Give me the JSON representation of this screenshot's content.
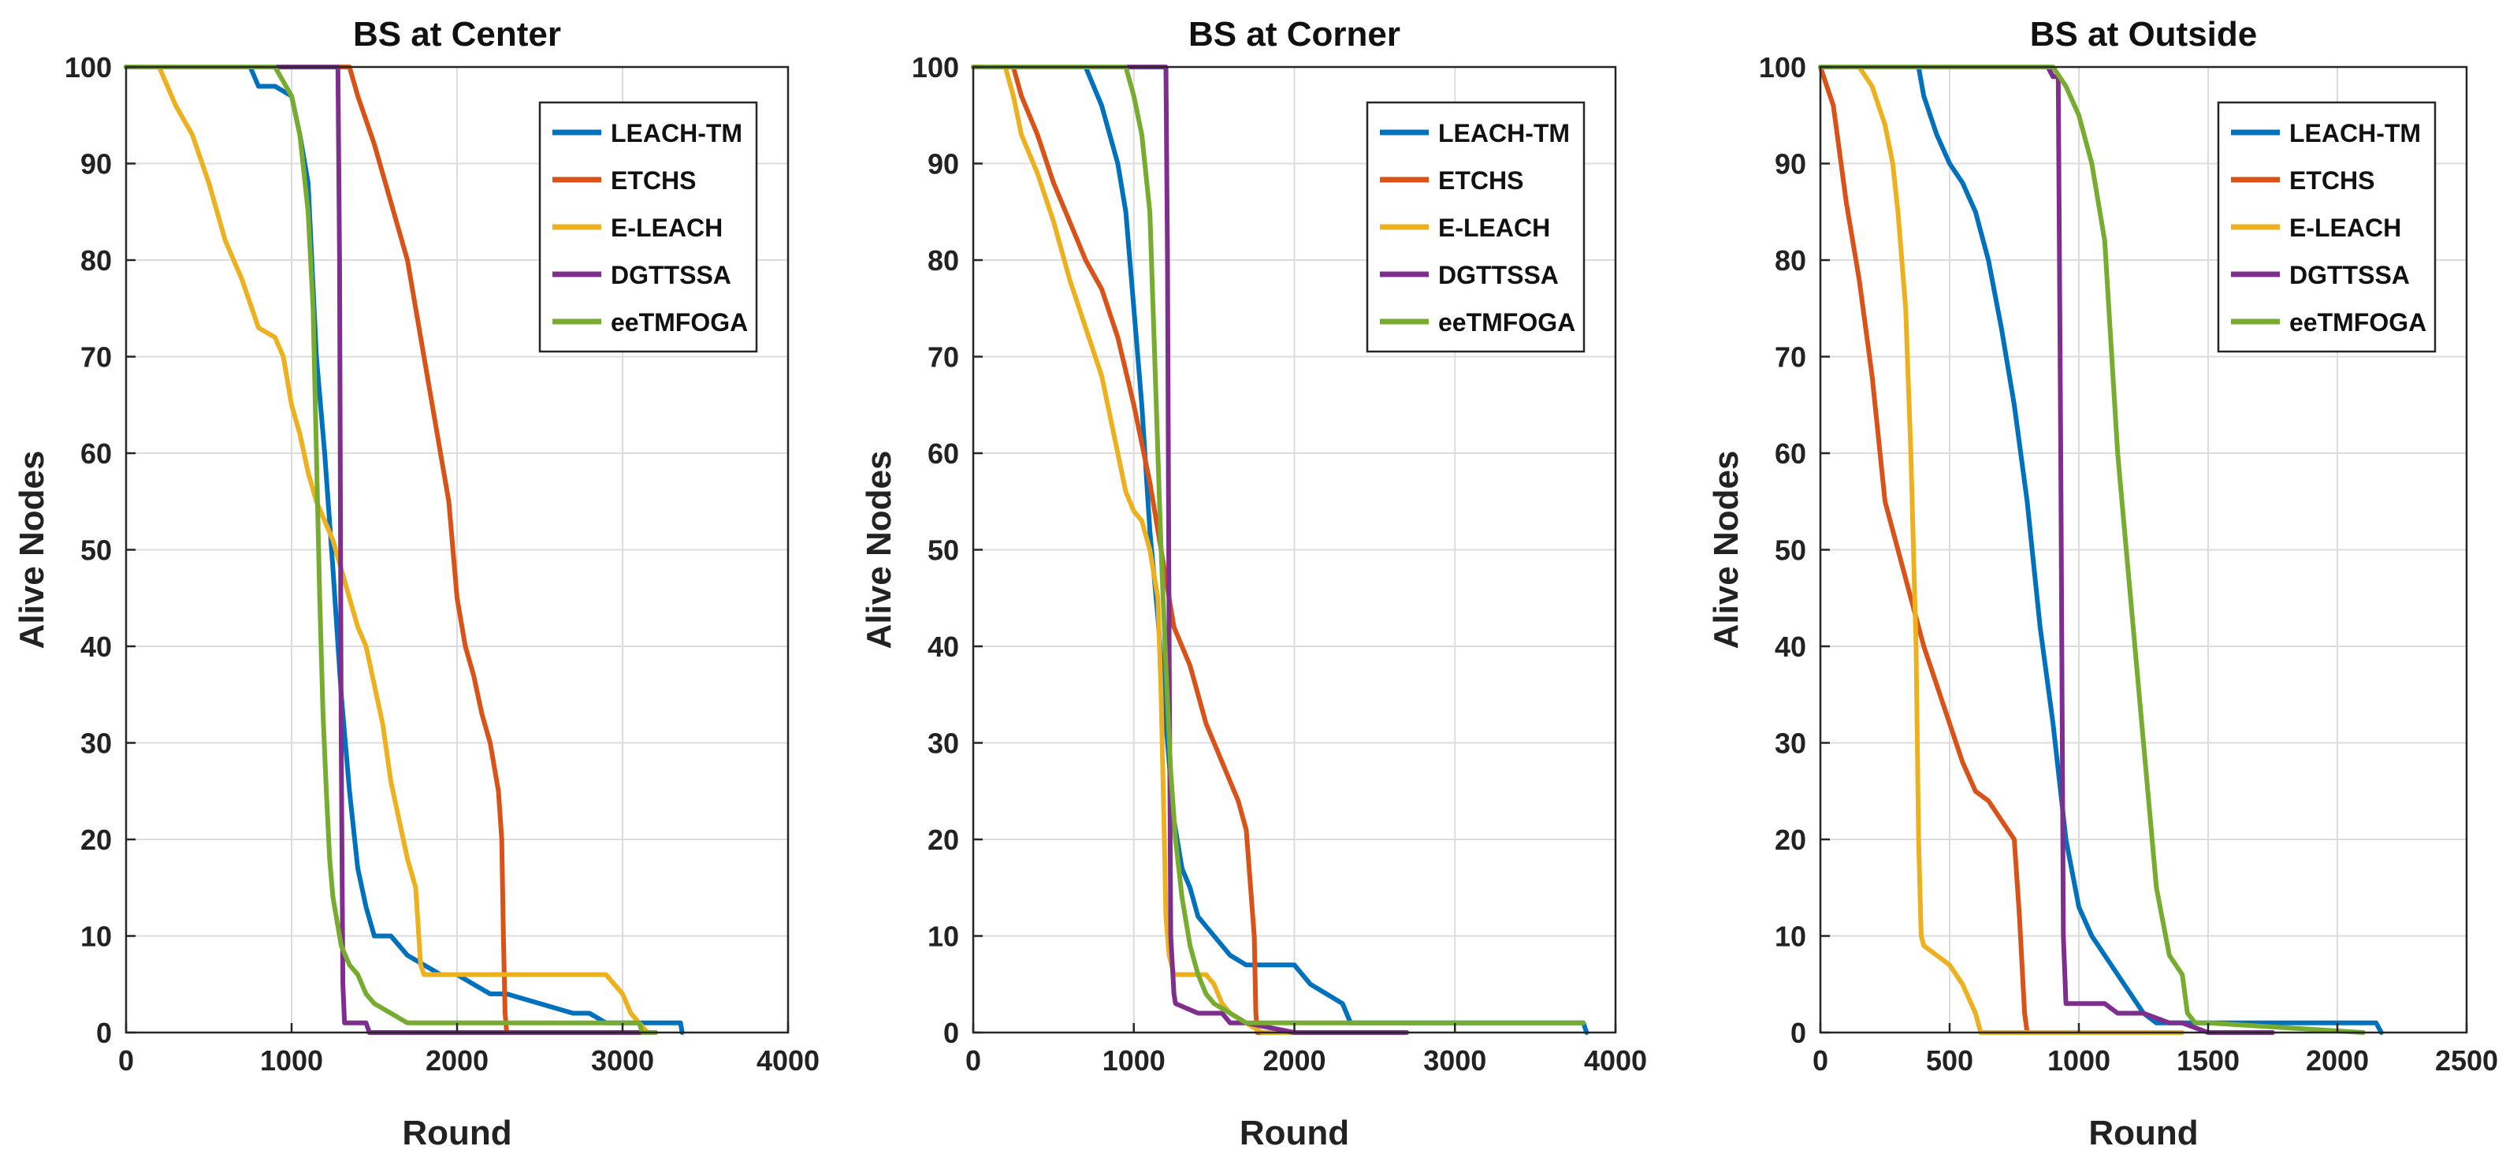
{
  "chart_data": [
    {
      "type": "line",
      "title": "BS at Center",
      "xlabel": "Round",
      "ylabel": "Alive Nodes",
      "xlim": [
        0,
        4000
      ],
      "ylim": [
        0,
        100
      ],
      "xticks": [
        0,
        1000,
        2000,
        3000,
        4000
      ],
      "yticks": [
        0,
        10,
        20,
        30,
        40,
        50,
        60,
        70,
        80,
        90,
        100
      ],
      "grid": true,
      "legend": "top-right",
      "series": [
        {
          "name": "LEACH-TM",
          "color": "#0072BD",
          "x": [
            0,
            750,
            800,
            900,
            1000,
            1050,
            1100,
            1150,
            1200,
            1250,
            1300,
            1350,
            1400,
            1450,
            1500,
            1600,
            1700,
            1800,
            1900,
            2000,
            2100,
            2200,
            2300,
            2500,
            2700,
            2800,
            2900,
            3300,
            3350,
            3360
          ],
          "y": [
            100,
            100,
            98,
            98,
            97,
            93,
            88,
            70,
            60,
            48,
            35,
            25,
            17,
            13,
            10,
            10,
            8,
            7,
            6,
            6,
            5,
            4,
            4,
            3,
            2,
            2,
            1,
            1,
            1,
            0
          ]
        },
        {
          "name": "ETCHS",
          "color": "#D95319",
          "x": [
            0,
            1350,
            1400,
            1500,
            1600,
            1700,
            1800,
            1850,
            1900,
            1950,
            2000,
            2050,
            2100,
            2150,
            2200,
            2250,
            2270,
            2280,
            2290,
            2300,
            2330
          ],
          "y": [
            100,
            100,
            97,
            92,
            86,
            80,
            70,
            65,
            60,
            55,
            45,
            40,
            37,
            33,
            30,
            25,
            20,
            10,
            2,
            0,
            0
          ]
        },
        {
          "name": "E-LEACH",
          "color": "#EDB120",
          "x": [
            0,
            200,
            300,
            400,
            500,
            550,
            600,
            700,
            800,
            900,
            950,
            1000,
            1050,
            1100,
            1150,
            1200,
            1250,
            1300,
            1350,
            1400,
            1450,
            1500,
            1550,
            1600,
            1650,
            1700,
            1750,
            1780,
            1800,
            2000,
            2500,
            2800,
            2900,
            3000,
            3050,
            3100,
            3150
          ],
          "y": [
            100,
            100,
            96,
            93,
            88,
            85,
            82,
            78,
            73,
            72,
            70,
            65,
            62,
            58,
            55,
            53,
            51,
            48,
            45,
            42,
            40,
            36,
            32,
            26,
            22,
            18,
            15,
            7,
            6,
            6,
            6,
            6,
            6,
            4,
            2,
            1,
            0
          ]
        },
        {
          "name": "DGTTSSA",
          "color": "#7E2F8E",
          "x": [
            0,
            1280,
            1290,
            1300,
            1310,
            1320,
            1450,
            1470,
            1500,
            3200
          ],
          "y": [
            100,
            100,
            80,
            30,
            5,
            1,
            1,
            0,
            0,
            0
          ]
        },
        {
          "name": "eeTMFOGA",
          "color": "#77AC30",
          "x": [
            0,
            900,
            1000,
            1050,
            1100,
            1130,
            1150,
            1170,
            1190,
            1210,
            1230,
            1250,
            1300,
            1350,
            1400,
            1450,
            1500,
            1600,
            1700,
            2000,
            3100,
            3120,
            3200
          ],
          "y": [
            100,
            100,
            97,
            93,
            85,
            75,
            60,
            45,
            33,
            25,
            18,
            14,
            9,
            7,
            6,
            4,
            3,
            2,
            1,
            1,
            1,
            0,
            0
          ]
        }
      ]
    },
    {
      "type": "line",
      "title": "BS at Corner",
      "xlabel": "Round",
      "ylabel": "Alive Nodes",
      "xlim": [
        0,
        4000
      ],
      "ylim": [
        0,
        100
      ],
      "xticks": [
        0,
        1000,
        2000,
        3000,
        4000
      ],
      "yticks": [
        0,
        10,
        20,
        30,
        40,
        50,
        60,
        70,
        80,
        90,
        100
      ],
      "grid": true,
      "legend": "top-right",
      "series": [
        {
          "name": "LEACH-TM",
          "color": "#0072BD",
          "x": [
            0,
            700,
            750,
            800,
            850,
            900,
            950,
            1000,
            1050,
            1100,
            1150,
            1200,
            1250,
            1300,
            1350,
            1400,
            1500,
            1600,
            1700,
            1800,
            1900,
            2000,
            2100,
            2200,
            2300,
            2350,
            2400,
            3800,
            3820
          ],
          "y": [
            100,
            100,
            98,
            96,
            93,
            90,
            85,
            75,
            65,
            52,
            43,
            32,
            22,
            17,
            15,
            12,
            10,
            8,
            7,
            7,
            7,
            7,
            5,
            4,
            3,
            1,
            1,
            1,
            0
          ]
        },
        {
          "name": "ETCHS",
          "color": "#D95319",
          "x": [
            0,
            250,
            300,
            400,
            500,
            600,
            700,
            800,
            900,
            1000,
            1100,
            1150,
            1200,
            1250,
            1300,
            1350,
            1400,
            1450,
            1500,
            1550,
            1600,
            1650,
            1700,
            1750,
            1760,
            1770,
            1800
          ],
          "y": [
            100,
            100,
            97,
            93,
            88,
            84,
            80,
            77,
            72,
            65,
            57,
            52,
            47,
            42,
            40,
            38,
            35,
            32,
            30,
            28,
            26,
            24,
            21,
            10,
            2,
            0,
            0
          ]
        },
        {
          "name": "E-LEACH",
          "color": "#EDB120",
          "x": [
            0,
            200,
            250,
            300,
            400,
            500,
            600,
            700,
            800,
            900,
            950,
            1000,
            1050,
            1100,
            1150,
            1170,
            1190,
            1200,
            1220,
            1250,
            1350,
            1450,
            1500,
            1550,
            1600,
            1700,
            1800,
            2000
          ],
          "y": [
            100,
            100,
            97,
            93,
            89,
            84,
            78,
            73,
            68,
            60,
            56,
            54,
            53,
            50,
            45,
            35,
            20,
            12,
            8,
            6,
            6,
            6,
            5,
            3,
            2,
            1,
            0,
            0
          ]
        },
        {
          "name": "DGTTSSA",
          "color": "#7E2F8E",
          "x": [
            0,
            1180,
            1200,
            1210,
            1220,
            1230,
            1250,
            1260,
            1400,
            1500,
            1550,
            1600,
            1700,
            2000,
            2700
          ],
          "y": [
            100,
            100,
            100,
            80,
            40,
            10,
            4,
            3,
            2,
            2,
            2,
            1,
            1,
            0,
            0
          ]
        },
        {
          "name": "eeTMFOGA",
          "color": "#77AC30",
          "x": [
            0,
            950,
            1000,
            1050,
            1100,
            1120,
            1150,
            1170,
            1200,
            1230,
            1260,
            1300,
            1350,
            1400,
            1450,
            1500,
            1600,
            1700,
            2000,
            3800
          ],
          "y": [
            100,
            100,
            97,
            93,
            85,
            75,
            60,
            50,
            38,
            27,
            20,
            14,
            9,
            6,
            4,
            3,
            2,
            1,
            1,
            1
          ]
        }
      ]
    },
    {
      "type": "line",
      "title": "BS at Outside",
      "xlabel": "Round",
      "ylabel": "Alive Nodes",
      "xlim": [
        0,
        2500
      ],
      "ylim": [
        0,
        100
      ],
      "xticks": [
        0,
        500,
        1000,
        1500,
        2000,
        2500
      ],
      "yticks": [
        0,
        10,
        20,
        30,
        40,
        50,
        60,
        70,
        80,
        90,
        100
      ],
      "grid": true,
      "legend": "top-right",
      "series": [
        {
          "name": "LEACH-TM",
          "color": "#0072BD",
          "x": [
            0,
            380,
            400,
            450,
            500,
            550,
            600,
            650,
            700,
            750,
            800,
            850,
            900,
            950,
            1000,
            1050,
            1100,
            1150,
            1200,
            1250,
            1300,
            1400,
            1500,
            2000,
            2150,
            2170
          ],
          "y": [
            100,
            100,
            97,
            93,
            90,
            88,
            85,
            80,
            73,
            65,
            55,
            42,
            32,
            20,
            13,
            10,
            8,
            6,
            4,
            2,
            1,
            1,
            1,
            1,
            1,
            0
          ]
        },
        {
          "name": "ETCHS",
          "color": "#D95319",
          "x": [
            0,
            50,
            100,
            150,
            200,
            250,
            300,
            350,
            400,
            450,
            500,
            550,
            600,
            650,
            700,
            750,
            770,
            790,
            800
          ],
          "y": [
            100,
            96,
            86,
            78,
            68,
            55,
            50,
            45,
            40,
            36,
            32,
            28,
            25,
            24,
            22,
            20,
            12,
            2,
            0
          ]
        },
        {
          "name": "E-LEACH",
          "color": "#EDB120",
          "x": [
            0,
            150,
            200,
            250,
            280,
            300,
            330,
            350,
            370,
            380,
            390,
            400,
            450,
            500,
            550,
            600,
            620,
            650,
            1400
          ],
          "y": [
            100,
            100,
            98,
            94,
            90,
            85,
            75,
            60,
            40,
            20,
            10,
            9,
            8,
            7,
            5,
            2,
            0,
            0,
            0
          ]
        },
        {
          "name": "DGTTSSA",
          "color": "#7E2F8E",
          "x": [
            0,
            880,
            900,
            920,
            930,
            940,
            950,
            1000,
            1050,
            1100,
            1150,
            1250,
            1350,
            1400,
            1500,
            1750
          ],
          "y": [
            100,
            100,
            99,
            99,
            60,
            10,
            3,
            3,
            3,
            3,
            2,
            2,
            1,
            1,
            0,
            0
          ]
        },
        {
          "name": "eeTMFOGA",
          "color": "#77AC30",
          "x": [
            0,
            900,
            950,
            1000,
            1050,
            1100,
            1150,
            1200,
            1250,
            1300,
            1350,
            1400,
            1420,
            1450,
            1500,
            2100
          ],
          "y": [
            100,
            100,
            98,
            95,
            90,
            82,
            60,
            45,
            30,
            15,
            8,
            6,
            2,
            1,
            1,
            0
          ]
        }
      ]
    }
  ]
}
